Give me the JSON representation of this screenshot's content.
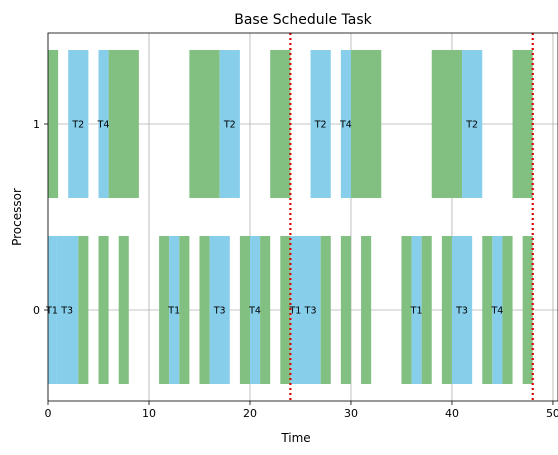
{
  "chart_data": {
    "type": "gantt",
    "title": "Base Schedule Task",
    "xlabel": "Time",
    "ylabel": "Processor",
    "xlim": [
      0,
      50.5
    ],
    "x_ticks": [
      0,
      10,
      20,
      30,
      40,
      50
    ],
    "y_ticks": [
      0,
      1
    ],
    "grid": true,
    "hyperperiod_lines": [
      24,
      48
    ],
    "colors": {
      "task": "#87ceeb",
      "idle": "#82c082",
      "boundary": "#dd0000"
    },
    "processors": [
      {
        "id": 0,
        "segments": [
          {
            "start": 0.0,
            "end": 0.8,
            "kind": "task",
            "label": "T1"
          },
          {
            "start": 0.8,
            "end": 3.0,
            "kind": "task",
            "label": "T3"
          },
          {
            "start": 3.0,
            "end": 4.0,
            "kind": "idle",
            "label": ""
          },
          {
            "start": 5.0,
            "end": 6.0,
            "kind": "idle",
            "label": ""
          },
          {
            "start": 7.0,
            "end": 8.0,
            "kind": "idle",
            "label": ""
          },
          {
            "start": 11.0,
            "end": 12.0,
            "kind": "idle",
            "label": ""
          },
          {
            "start": 12.0,
            "end": 13.0,
            "kind": "task",
            "label": "T1"
          },
          {
            "start": 13.0,
            "end": 14.0,
            "kind": "idle",
            "label": ""
          },
          {
            "start": 15.0,
            "end": 16.0,
            "kind": "idle",
            "label": ""
          },
          {
            "start": 16.0,
            "end": 18.0,
            "kind": "task",
            "label": "T3"
          },
          {
            "start": 19.0,
            "end": 20.0,
            "kind": "idle",
            "label": ""
          },
          {
            "start": 20.0,
            "end": 21.0,
            "kind": "task",
            "label": "T4"
          },
          {
            "start": 21.0,
            "end": 22.0,
            "kind": "idle",
            "label": ""
          },
          {
            "start": 23.0,
            "end": 24.0,
            "kind": "idle",
            "label": ""
          },
          {
            "start": 24.0,
            "end": 25.0,
            "kind": "task",
            "label": "T1"
          },
          {
            "start": 25.0,
            "end": 27.0,
            "kind": "task",
            "label": "T3"
          },
          {
            "start": 27.0,
            "end": 28.0,
            "kind": "idle",
            "label": ""
          },
          {
            "start": 29.0,
            "end": 30.0,
            "kind": "idle",
            "label": ""
          },
          {
            "start": 31.0,
            "end": 32.0,
            "kind": "idle",
            "label": ""
          },
          {
            "start": 35.0,
            "end": 36.0,
            "kind": "idle",
            "label": ""
          },
          {
            "start": 36.0,
            "end": 37.0,
            "kind": "task",
            "label": "T1"
          },
          {
            "start": 37.0,
            "end": 38.0,
            "kind": "idle",
            "label": ""
          },
          {
            "start": 39.0,
            "end": 40.0,
            "kind": "idle",
            "label": ""
          },
          {
            "start": 40.0,
            "end": 42.0,
            "kind": "task",
            "label": "T3"
          },
          {
            "start": 43.0,
            "end": 44.0,
            "kind": "idle",
            "label": ""
          },
          {
            "start": 44.0,
            "end": 45.0,
            "kind": "task",
            "label": "T4"
          },
          {
            "start": 45.0,
            "end": 46.0,
            "kind": "idle",
            "label": ""
          },
          {
            "start": 47.0,
            "end": 48.0,
            "kind": "idle",
            "label": ""
          }
        ]
      },
      {
        "id": 1,
        "segments": [
          {
            "start": 0.0,
            "end": 1.0,
            "kind": "idle",
            "label": ""
          },
          {
            "start": 2.0,
            "end": 4.0,
            "kind": "task",
            "label": "T2"
          },
          {
            "start": 5.0,
            "end": 6.0,
            "kind": "task",
            "label": "T4"
          },
          {
            "start": 6.0,
            "end": 9.0,
            "kind": "idle",
            "label": ""
          },
          {
            "start": 14.0,
            "end": 17.0,
            "kind": "idle",
            "label": ""
          },
          {
            "start": 17.0,
            "end": 19.0,
            "kind": "task",
            "label": "T2"
          },
          {
            "start": 22.0,
            "end": 24.0,
            "kind": "idle",
            "label": ""
          },
          {
            "start": 26.0,
            "end": 28.0,
            "kind": "task",
            "label": "T2"
          },
          {
            "start": 29.0,
            "end": 30.0,
            "kind": "task",
            "label": "T4"
          },
          {
            "start": 30.0,
            "end": 33.0,
            "kind": "idle",
            "label": ""
          },
          {
            "start": 38.0,
            "end": 41.0,
            "kind": "idle",
            "label": ""
          },
          {
            "start": 41.0,
            "end": 43.0,
            "kind": "task",
            "label": "T2"
          },
          {
            "start": 46.0,
            "end": 48.0,
            "kind": "idle",
            "label": ""
          }
        ]
      }
    ]
  }
}
